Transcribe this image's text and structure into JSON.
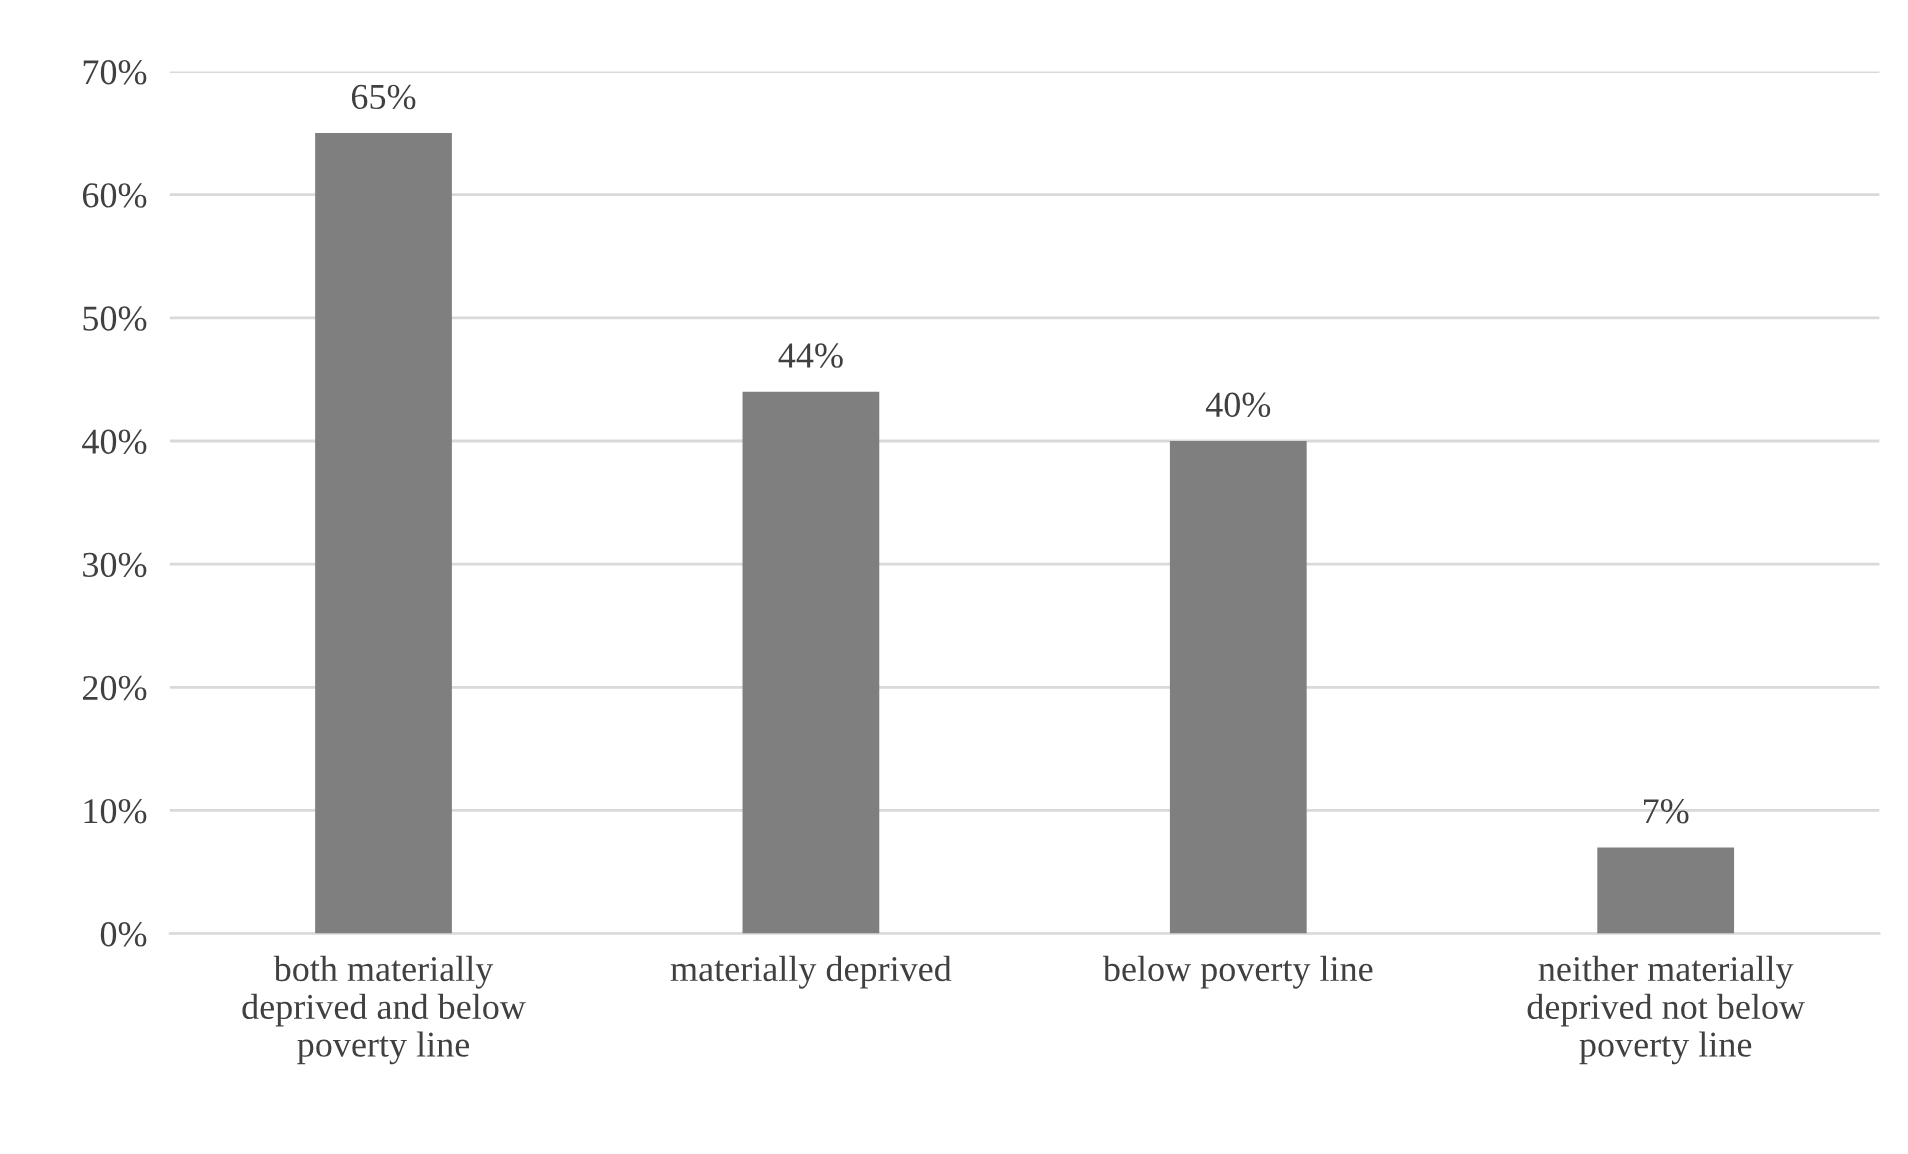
{
  "chart_data": {
    "type": "bar",
    "categories": [
      "both materially\ndeprived and below\npoverty line",
      "materially deprived",
      "below poverty line",
      "neither materially\ndeprived not below\npoverty line"
    ],
    "values": [
      65,
      44,
      40,
      7
    ],
    "color": "#7f7f7f",
    "value_labels": [
      "65%",
      "44%",
      "40%",
      "7%"
    ],
    "ylim": [
      0,
      70
    ],
    "yticks": [
      {
        "value": 0,
        "label": "0%"
      },
      {
        "value": 10,
        "label": "10%"
      },
      {
        "value": 20,
        "label": "20%"
      },
      {
        "value": 30,
        "label": "30%"
      },
      {
        "value": 40,
        "label": "40%"
      },
      {
        "value": 50,
        "label": "50%"
      },
      {
        "value": 60,
        "label": "60%"
      },
      {
        "value": 70,
        "label": "70%"
      }
    ],
    "grid": "y",
    "legend": false
  }
}
